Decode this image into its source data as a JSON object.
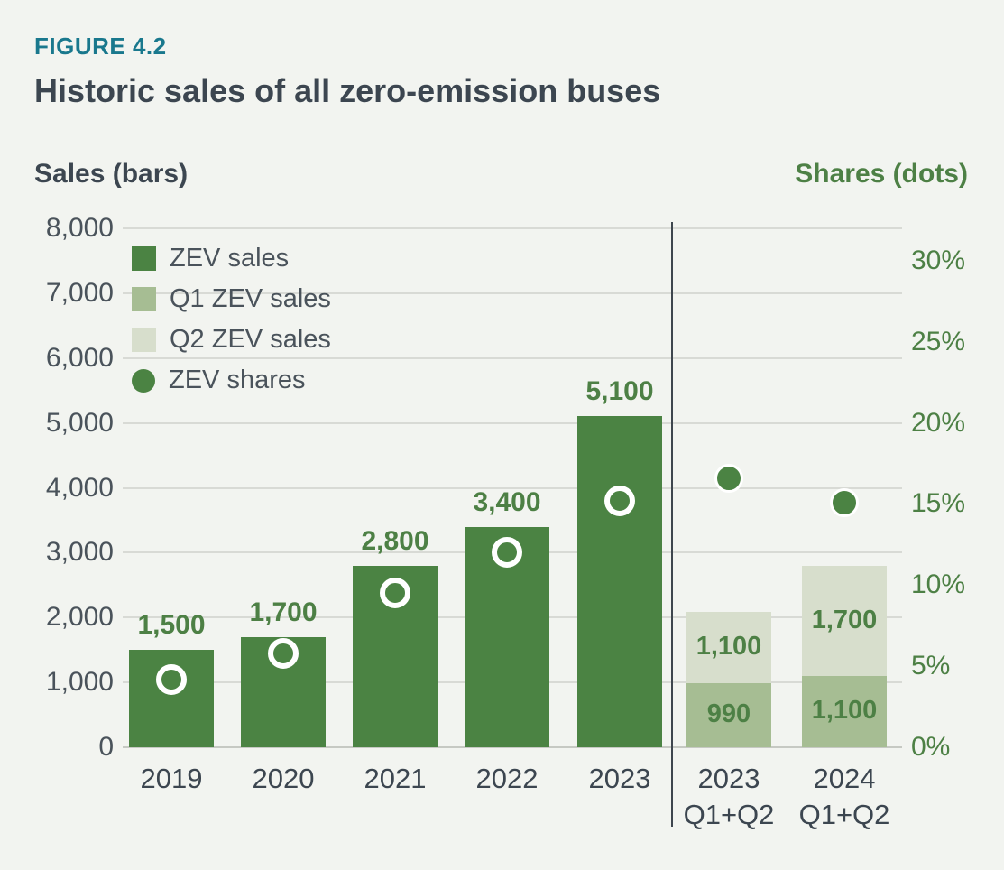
{
  "figure": {
    "eyebrow": "FIGURE 4.2",
    "title": "Historic sales of all zero-emission buses"
  },
  "axis_titles": {
    "left": "Sales (bars)",
    "right": "Shares (dots)"
  },
  "legend": {
    "items": [
      {
        "label": "ZEV sales",
        "swatch": "square",
        "color": "zev_dark"
      },
      {
        "label": "Q1 ZEV sales",
        "swatch": "square",
        "color": "zev_mid"
      },
      {
        "label": "Q2 ZEV sales",
        "swatch": "square",
        "color": "zev_light"
      },
      {
        "label": "ZEV shares",
        "swatch": "dot",
        "color": "zev_dark"
      }
    ]
  },
  "colors": {
    "zev_dark": "#4b8343",
    "zev_mid": "#a6bd93",
    "zev_light": "#d7decc",
    "zev_text": "#4d8045",
    "teal": "#19788d",
    "text_dark": "#3c4650",
    "text_gray": "#4a535b",
    "grid": "#d8dad5",
    "baseline": "#c6c9c3",
    "divider": "#3e464e",
    "background": "#f2f4f0"
  },
  "chart_data": {
    "type": "bar+scatter",
    "title": "Historic sales of all zero-emission buses",
    "categories": [
      {
        "line1": "2019"
      },
      {
        "line1": "2020"
      },
      {
        "line1": "2021"
      },
      {
        "line1": "2022"
      },
      {
        "line1": "2023"
      },
      {
        "line1": "2023",
        "line2": "Q1+Q2"
      },
      {
        "line1": "2024",
        "line2": "Q1+Q2"
      }
    ],
    "series": [
      {
        "name": "ZEV sales",
        "type": "bar",
        "axis": "left",
        "values": [
          1500,
          1700,
          2800,
          3400,
          5100,
          null,
          null
        ],
        "labels": [
          "1,500",
          "1,700",
          "2,800",
          "3,400",
          "5,100",
          null,
          null
        ]
      },
      {
        "name": "Q1 ZEV sales",
        "type": "bar",
        "axis": "left",
        "stack": "half-year",
        "values": [
          null,
          null,
          null,
          null,
          null,
          990,
          1100
        ],
        "labels": [
          null,
          null,
          null,
          null,
          null,
          "990",
          "1,100"
        ]
      },
      {
        "name": "Q2 ZEV sales",
        "type": "bar",
        "axis": "left",
        "stack": "half-year",
        "values": [
          null,
          null,
          null,
          null,
          null,
          1100,
          1700
        ],
        "labels": [
          null,
          null,
          null,
          null,
          null,
          "1,100",
          "1,700"
        ]
      },
      {
        "name": "ZEV shares",
        "type": "scatter",
        "axis": "right",
        "values_percent": [
          4.2,
          5.8,
          9.5,
          12.0,
          15.2,
          16.6,
          15.1
        ],
        "marker": [
          "ring",
          "ring",
          "ring",
          "ring",
          "ring",
          "solid",
          "solid"
        ]
      }
    ],
    "left_axis": {
      "title": "Sales (bars)",
      "range": [
        0,
        8000
      ],
      "ticks": [
        0,
        1000,
        2000,
        3000,
        4000,
        5000,
        6000,
        7000,
        8000
      ],
      "tick_labels": [
        "0",
        "1,000",
        "2,000",
        "3,000",
        "4,000",
        "5,000",
        "6,000",
        "7,000",
        "8,000"
      ]
    },
    "right_axis": {
      "title": "Shares (dots)",
      "range_percent": [
        0,
        32
      ],
      "ticks": [
        0,
        5,
        10,
        15,
        20,
        25,
        30
      ],
      "tick_labels": [
        "0%",
        "5%",
        "10%",
        "15%",
        "20%",
        "25%",
        "30%"
      ]
    },
    "divider_after_category_index": 4,
    "grid": "horizontal",
    "legend_position": "top-left-inside"
  }
}
